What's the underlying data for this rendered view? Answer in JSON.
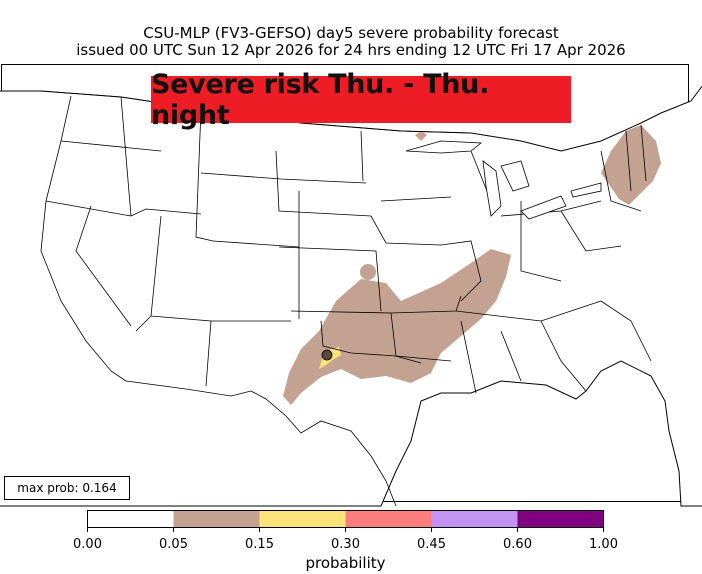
{
  "title": {
    "line1": "CSU-MLP (FV3-GEFSO) day5 severe probability forecast",
    "line2": "issued 00 UTC Sun 12 Apr 2026 for 24 hrs ending 12 UTC Fri 17 Apr 2026"
  },
  "banner": {
    "text": "Severe risk Thu. - Thu. night",
    "color": "#ee1c25"
  },
  "max_prob": {
    "text": "max prob: 0.164",
    "value": 0.164
  },
  "colorbar": {
    "label": "probability",
    "ticks": [
      "0.00",
      "0.05",
      "0.15",
      "0.30",
      "0.45",
      "0.60",
      "1.00"
    ],
    "bins": [
      {
        "color": "#ffffff"
      },
      {
        "color": "#c4a291"
      },
      {
        "color": "#fbe57b"
      },
      {
        "color": "#fb7d7d"
      },
      {
        "color": "#c494f2"
      },
      {
        "color": "#800080"
      }
    ]
  },
  "colors": {
    "prob_005": "#c4a291",
    "prob_015": "#fbe57b",
    "max_marker": "#4a3a2c"
  },
  "chart_data": {
    "type": "heatmap",
    "levels": [
      0.05,
      0.15,
      0.3,
      0.45,
      0.6,
      1.0
    ],
    "max_prob": 0.164
  }
}
